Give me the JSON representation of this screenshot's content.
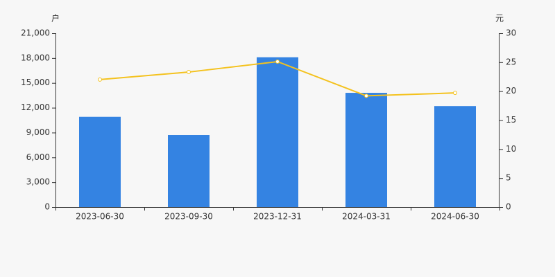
{
  "chart_data": {
    "type": "bar",
    "y_label": "户",
    "y2_label": "元",
    "categories": [
      "2023-06-30",
      "2023-09-30",
      "2023-12-31",
      "2024-03-31",
      "2024-06-30"
    ],
    "series": [
      {
        "type": "bar",
        "color": "#3483e2",
        "values": [
          10900,
          8700,
          18100,
          13800,
          12200
        ]
      },
      {
        "type": "line",
        "axis": "y2",
        "color": "#f4c21e",
        "values": [
          22.0,
          23.3,
          25.1,
          19.2,
          19.7
        ]
      }
    ],
    "ylim": [
      0,
      21000
    ],
    "yticks": [
      0,
      {
        "value": 3000,
        "label": "3,000"
      },
      {
        "value": 6000,
        "label": "6,000"
      },
      {
        "value": 9000,
        "label": "9,000"
      },
      {
        "value": 12000,
        "label": "12,000"
      },
      {
        "value": 15000,
        "label": "15,000"
      },
      {
        "value": 18000,
        "label": "18,000"
      },
      {
        "value": 21000,
        "label": "21,000"
      }
    ],
    "y2lim": [
      0,
      30
    ],
    "y2ticks": [
      0,
      5,
      10,
      15,
      20,
      25,
      30
    ]
  }
}
